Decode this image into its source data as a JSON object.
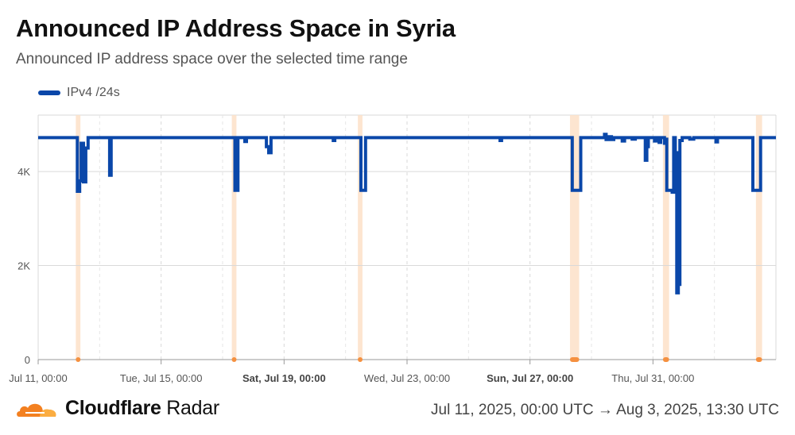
{
  "header": {
    "title": "Announced IP Address Space in Syria",
    "subtitle": "Announced IP address space over the selected time range"
  },
  "legend": {
    "label": "IPv4 /24s",
    "color": "#0a47a9"
  },
  "colors": {
    "series": "#0a47a9",
    "event_band": "#fde0c8",
    "event_marker": "#f5903f",
    "grid": "#d9d9d9",
    "axis_text": "#555555"
  },
  "footer": {
    "brand": "Cloudflare",
    "brand_suffix": "Radar",
    "date_range": "Jul 11, 2025, 00:00 UTC → Aug 3, 2025, 13:30 UTC"
  },
  "chart_data": {
    "type": "line",
    "series": [
      {
        "name": "IPv4 /24s",
        "points": [
          [
            0,
            4720
          ],
          [
            5.1,
            4720
          ],
          [
            5.1,
            3580
          ],
          [
            5.4,
            3580
          ],
          [
            5.4,
            3800
          ],
          [
            5.6,
            3800
          ],
          [
            5.6,
            4600
          ],
          [
            5.9,
            4600
          ],
          [
            5.9,
            3780
          ],
          [
            6.2,
            3780
          ],
          [
            6.2,
            4500
          ],
          [
            6.5,
            4500
          ],
          [
            6.5,
            4720
          ],
          [
            9.3,
            4720
          ],
          [
            9.3,
            3920
          ],
          [
            9.5,
            3920
          ],
          [
            9.5,
            4720
          ],
          [
            25.6,
            4720
          ],
          [
            25.6,
            3600
          ],
          [
            26.0,
            3600
          ],
          [
            26.0,
            4720
          ],
          [
            26.9,
            4720
          ],
          [
            26.9,
            4640
          ],
          [
            27.1,
            4640
          ],
          [
            27.1,
            4720
          ],
          [
            29.7,
            4720
          ],
          [
            29.7,
            4530
          ],
          [
            30.0,
            4530
          ],
          [
            30.0,
            4400
          ],
          [
            30.3,
            4400
          ],
          [
            30.3,
            4720
          ],
          [
            38.4,
            4720
          ],
          [
            38.4,
            4660
          ],
          [
            38.6,
            4660
          ],
          [
            38.6,
            4720
          ],
          [
            42.0,
            4720
          ],
          [
            42.0,
            3600
          ],
          [
            42.6,
            3600
          ],
          [
            42.6,
            4720
          ],
          [
            60.1,
            4720
          ],
          [
            60.1,
            4660
          ],
          [
            60.3,
            4660
          ],
          [
            60.3,
            4720
          ],
          [
            69.5,
            4720
          ],
          [
            69.5,
            3600
          ],
          [
            70.6,
            3600
          ],
          [
            70.6,
            4720
          ],
          [
            73.7,
            4720
          ],
          [
            73.7,
            4790
          ],
          [
            73.9,
            4790
          ],
          [
            73.9,
            4680
          ],
          [
            74.2,
            4680
          ],
          [
            74.2,
            4740
          ],
          [
            74.6,
            4740
          ],
          [
            74.6,
            4680
          ],
          [
            74.9,
            4680
          ],
          [
            74.9,
            4720
          ],
          [
            76.0,
            4720
          ],
          [
            76.0,
            4650
          ],
          [
            76.3,
            4650
          ],
          [
            76.3,
            4720
          ],
          [
            77.3,
            4720
          ],
          [
            77.3,
            4690
          ],
          [
            77.7,
            4690
          ],
          [
            77.7,
            4720
          ],
          [
            79.0,
            4720
          ],
          [
            79.0,
            4240
          ],
          [
            79.2,
            4240
          ],
          [
            79.2,
            4530
          ],
          [
            79.4,
            4530
          ],
          [
            79.4,
            4720
          ],
          [
            80.2,
            4720
          ],
          [
            80.2,
            4650
          ],
          [
            80.4,
            4650
          ],
          [
            80.4,
            4720
          ],
          [
            80.8,
            4720
          ],
          [
            80.8,
            4620
          ],
          [
            81.0,
            4620
          ],
          [
            81.0,
            4720
          ],
          [
            81.5,
            4720
          ],
          [
            81.5,
            4600
          ],
          [
            81.8,
            4600
          ],
          [
            81.8,
            4720
          ],
          [
            81.8,
            4720
          ],
          [
            81.8,
            3600
          ],
          [
            82.5,
            3600
          ],
          [
            82.5,
            3560
          ],
          [
            82.7,
            3560
          ],
          [
            82.7,
            4720
          ],
          [
            82.9,
            4720
          ],
          [
            82.9,
            4400
          ],
          [
            83.1,
            4400
          ],
          [
            83.1,
            1420
          ],
          [
            83.3,
            1420
          ],
          [
            83.3,
            1600
          ],
          [
            83.5,
            1600
          ],
          [
            83.5,
            4660
          ],
          [
            83.8,
            4660
          ],
          [
            83.8,
            4720
          ],
          [
            84.8,
            4720
          ],
          [
            84.8,
            4690
          ],
          [
            85.3,
            4690
          ],
          [
            85.3,
            4720
          ],
          [
            88.2,
            4720
          ],
          [
            88.2,
            4630
          ],
          [
            88.4,
            4630
          ],
          [
            88.4,
            4720
          ],
          [
            93.0,
            4720
          ],
          [
            93.0,
            3600
          ],
          [
            94.0,
            3600
          ],
          [
            94.0,
            4720
          ],
          [
            94.4,
            4720
          ],
          [
            96.0,
            4720
          ]
        ]
      }
    ],
    "x_unit": "hours since Jul 11, 00:00 UTC (x4)",
    "xlim": [
      0,
      96
    ],
    "ylim": [
      0,
      5200
    ],
    "y_ticks": [
      {
        "value": 0,
        "label": "0"
      },
      {
        "value": 2000,
        "label": "2K"
      },
      {
        "value": 4000,
        "label": "4K"
      }
    ],
    "x_ticks": [
      {
        "value": 0,
        "label": "Jul 11, 00:00",
        "bold": false
      },
      {
        "value": 16,
        "label": "Tue, Jul 15, 00:00",
        "bold": false
      },
      {
        "value": 32,
        "label": "Sat, Jul 19, 00:00",
        "bold": true
      },
      {
        "value": 48,
        "label": "Wed, Jul 23, 00:00",
        "bold": false
      },
      {
        "value": 64,
        "label": "Sun, Jul 27, 00:00",
        "bold": true
      },
      {
        "value": 80,
        "label": "Thu, Jul 31, 00:00",
        "bold": false
      }
    ],
    "minor_gridlines": [
      8,
      24,
      40,
      56,
      72,
      88
    ],
    "event_bands": [
      {
        "start": 4.9,
        "end": 5.5
      },
      {
        "start": 25.2,
        "end": 25.8
      },
      {
        "start": 41.6,
        "end": 42.2
      },
      {
        "start": 69.2,
        "end": 70.4
      },
      {
        "start": 81.3,
        "end": 82.1
      },
      {
        "start": 93.4,
        "end": 94.2
      }
    ],
    "grid": true,
    "legend_position": "top-left"
  }
}
